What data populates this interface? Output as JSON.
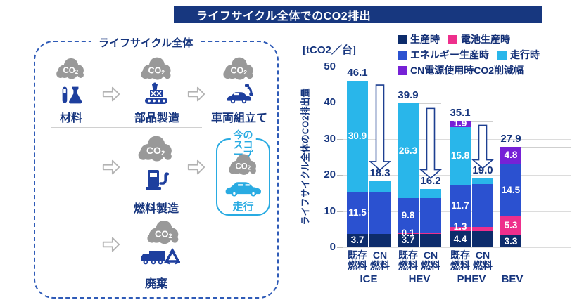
{
  "title": "ライフサイクル全体でのCO2排出",
  "colors": {
    "title_bg": "#17377f",
    "navy": "#0d2c6b",
    "blue": "#2b51d0",
    "cyan": "#29b6ea",
    "pink": "#ee2f8c",
    "purple": "#7621d6",
    "text_navy": "#16357e",
    "icon_navy": "#1e3f9e",
    "cloud_gray": "#999999",
    "scope_cyan": "#29abe2"
  },
  "lifecycle": {
    "panel_title": "ライフサイクル全体",
    "co2_label": "CO2",
    "steps": [
      {
        "id": "materials",
        "label": "材料",
        "icon": "flask-icon"
      },
      {
        "id": "parts",
        "label": "部品製造",
        "icon": "factory-conveyor-icon"
      },
      {
        "id": "assembly",
        "label": "車両組立て",
        "icon": "car-assembly-icon"
      },
      {
        "id": "fuel",
        "label": "燃料製造",
        "icon": "fuel-pump-icon"
      },
      {
        "id": "disposal",
        "label": "廃棄",
        "icon": "truck-recycle-icon"
      }
    ],
    "scope": {
      "title": "今の\nスコープ",
      "label": "走行"
    }
  },
  "chart_data": {
    "type": "bar",
    "stacked": true,
    "unit": "[tCO2／台]",
    "ylabel": "ライフサイクル全体のCO2排出量",
    "ylim": [
      0,
      50
    ],
    "yticks": [
      0,
      10,
      20,
      30,
      40,
      50
    ],
    "grid": true,
    "legend_position": "top-right",
    "legend": [
      {
        "name": "生産時",
        "color": "#0d2c6b"
      },
      {
        "name": "電池生産時",
        "color": "#ee2f8c"
      },
      {
        "name": "エネルギー生産時",
        "color": "#2b51d0"
      },
      {
        "name": "走行時",
        "color": "#29b6ea"
      },
      {
        "name": "CN電源使用時CO2削減幅",
        "color": "#7621d6"
      }
    ],
    "groups": [
      {
        "label": "ICE",
        "arrow": {
          "from": 45.2,
          "to": 21.3
        },
        "bars": [
          {
            "sublabel_lines": [
              "既存",
              "燃料"
            ],
            "total": "46.1",
            "segments": [
              {
                "series": "生産時",
                "value": 3.7,
                "label": "3.7"
              },
              {
                "series": "エネルギー生産時",
                "value": 11.5,
                "label": "11.5"
              },
              {
                "series": "走行時",
                "value": 30.9,
                "label": "30.9"
              }
            ]
          },
          {
            "sublabel_lines": [
              "CN",
              "燃料"
            ],
            "total": "18.3",
            "segments": [
              {
                "series": "生産時",
                "value": 3.7
              },
              {
                "series": "エネルギー生産時",
                "value": 11.5
              },
              {
                "series": "走行時",
                "value": 3.1
              }
            ]
          }
        ]
      },
      {
        "label": "HEV",
        "arrow": {
          "from": 38.7,
          "to": 19.0
        },
        "bars": [
          {
            "sublabel_lines": [
              "既存",
              "燃料"
            ],
            "total": "39.9",
            "segments": [
              {
                "series": "生産時",
                "value": 3.7,
                "label": "3.7"
              },
              {
                "series": "電池生産時",
                "value": 0.1,
                "label": "0.1"
              },
              {
                "series": "エネルギー生産時",
                "value": 9.8,
                "label": "9.8"
              },
              {
                "series": "走行時",
                "value": 26.3,
                "label": "26.3"
              }
            ]
          },
          {
            "sublabel_lines": [
              "CN",
              "燃料"
            ],
            "total": "16.2",
            "segments": [
              {
                "series": "生産時",
                "value": 3.7
              },
              {
                "series": "電池生産時",
                "value": 0.1
              },
              {
                "series": "エネルギー生産時",
                "value": 9.8
              },
              {
                "series": "走行時",
                "value": 2.6
              }
            ]
          }
        ]
      },
      {
        "label": "PHEV",
        "arrow": {
          "from": 34.1,
          "to": 21.8
        },
        "bars": [
          {
            "sublabel_lines": [
              "既存",
              "燃料"
            ],
            "total": "35.1",
            "segments": [
              {
                "series": "生産時",
                "value": 4.4,
                "label": "4.4"
              },
              {
                "series": "電池生産時",
                "value": 1.3,
                "label": "1.3"
              },
              {
                "series": "エネルギー生産時",
                "value": 11.7,
                "label": "11.7"
              },
              {
                "series": "走行時",
                "value": 15.8,
                "label": "15.8"
              },
              {
                "series": "CN電源使用時CO2削減幅",
                "value": 1.9,
                "label": "1.9"
              }
            ]
          },
          {
            "sublabel_lines": [
              "CN",
              "燃料"
            ],
            "total": "19.0",
            "segments": [
              {
                "series": "生産時",
                "value": 4.4
              },
              {
                "series": "電池生産時",
                "value": 1.3
              },
              {
                "series": "エネルギー生産時",
                "value": 11.9
              },
              {
                "series": "走行時",
                "value": 1.4
              }
            ]
          }
        ]
      },
      {
        "label": "BEV",
        "bars": [
          {
            "sublabel_lines": [],
            "total": "27.9",
            "segments": [
              {
                "series": "生産時",
                "value": 3.3,
                "label": "3.3"
              },
              {
                "series": "電池生産時",
                "value": 5.3,
                "label": "5.3"
              },
              {
                "series": "エネルギー生産時",
                "value": 14.5,
                "label": "14.5"
              },
              {
                "series": "CN電源使用時CO2削減幅",
                "value": 4.8,
                "label": "4.8"
              }
            ]
          }
        ]
      }
    ]
  }
}
